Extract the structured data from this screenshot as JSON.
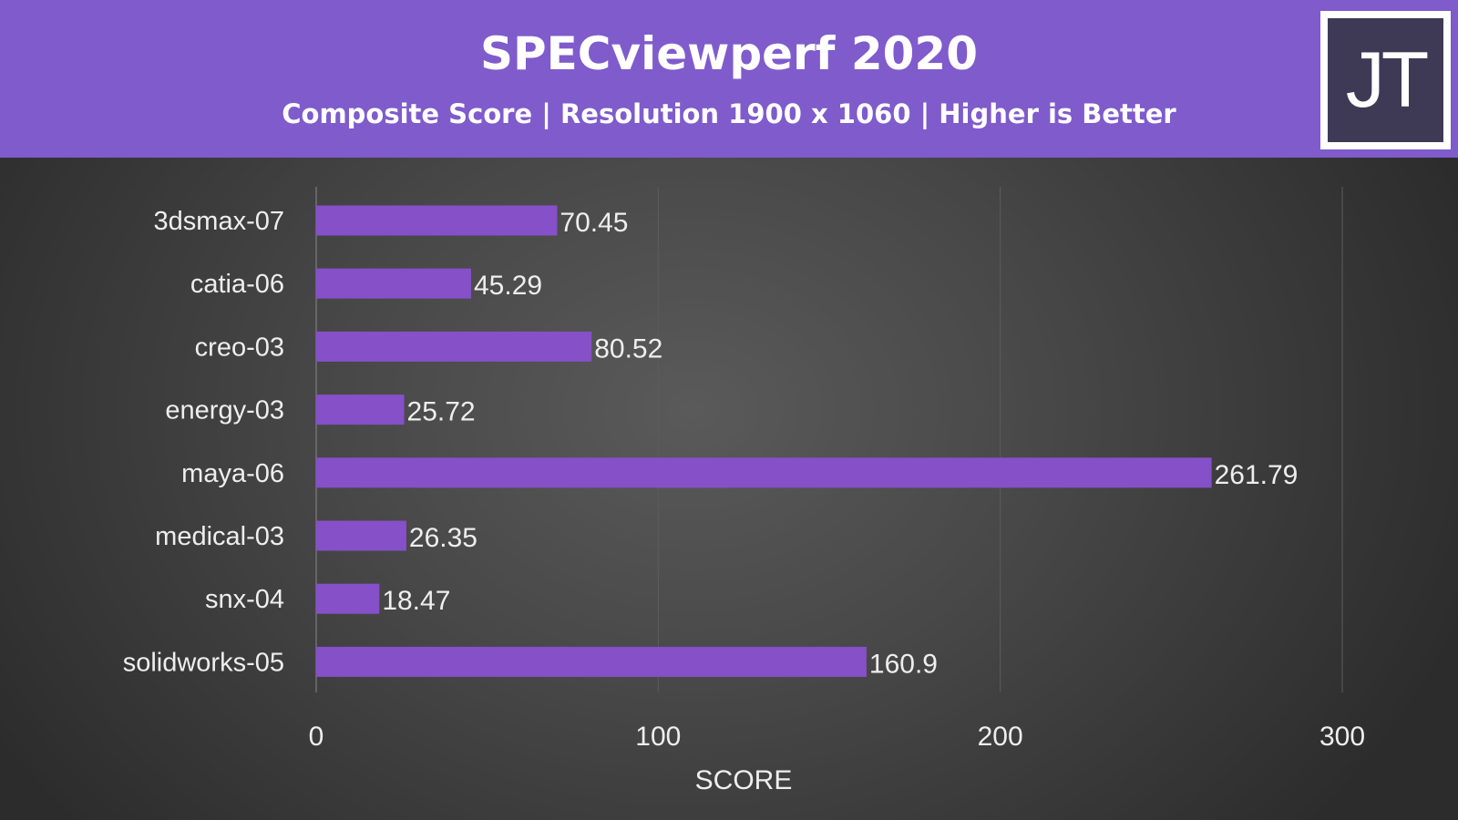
{
  "chart_data": {
    "type": "bar",
    "orientation": "horizontal",
    "title": "SPECviewperf 2020",
    "subtitle": "Composite Score | Resolution 1900 x 1060 | Higher is Better",
    "categories": [
      "3dsmax-07",
      "catia-06",
      "creo-03",
      "energy-03",
      "maya-06",
      "medical-03",
      "snx-04",
      "solidworks-05"
    ],
    "values": [
      70.45,
      45.29,
      80.52,
      25.72,
      261.79,
      26.35,
      18.47,
      160.9
    ],
    "value_labels": [
      "70.45",
      "45.29",
      "80.52",
      "25.72",
      "261.79",
      "26.35",
      "18.47",
      "160.9"
    ],
    "xlabel": "SCORE",
    "ylabel": "",
    "xlim": [
      0,
      300
    ],
    "xticks": [
      "0",
      "100",
      "200",
      "300"
    ],
    "grid": true,
    "bar_color": "#8650c8"
  },
  "logo": {
    "text": "JT"
  },
  "colors": {
    "header": "#7f5bcc"
  }
}
